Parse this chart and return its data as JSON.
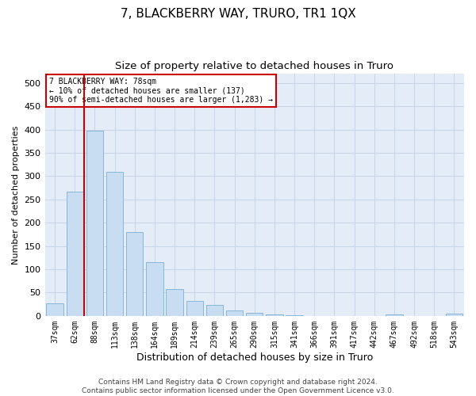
{
  "title": "7, BLACKBERRY WAY, TRURO, TR1 1QX",
  "subtitle": "Size of property relative to detached houses in Truro",
  "xlabel": "Distribution of detached houses by size in Truro",
  "ylabel": "Number of detached properties",
  "categories": [
    "37sqm",
    "62sqm",
    "88sqm",
    "113sqm",
    "138sqm",
    "164sqm",
    "189sqm",
    "214sqm",
    "239sqm",
    "265sqm",
    "290sqm",
    "315sqm",
    "341sqm",
    "366sqm",
    "391sqm",
    "417sqm",
    "442sqm",
    "467sqm",
    "492sqm",
    "518sqm",
    "543sqm"
  ],
  "values": [
    27,
    267,
    397,
    310,
    180,
    115,
    57,
    32,
    23,
    12,
    6,
    3,
    1,
    0,
    0,
    0,
    0,
    3,
    0,
    0,
    4
  ],
  "bar_color": "#c9ddf2",
  "bar_edge_color": "#7aafd4",
  "vline_x": 1.48,
  "vline_color": "#cc0000",
  "annotation_text": "7 BLACKBERRY WAY: 78sqm\n← 10% of detached houses are smaller (137)\n90% of semi-detached houses are larger (1,283) →",
  "annotation_box_color": "#ffffff",
  "annotation_box_edge": "#cc0000",
  "ylim": [
    0,
    520
  ],
  "yticks": [
    0,
    50,
    100,
    150,
    200,
    250,
    300,
    350,
    400,
    450,
    500
  ],
  "grid_color": "#c8d4e8",
  "bg_color": "#e4ecf7",
  "footer": "Contains HM Land Registry data © Crown copyright and database right 2024.\nContains public sector information licensed under the Open Government Licence v3.0.",
  "title_fontsize": 11,
  "subtitle_fontsize": 9.5,
  "xlabel_fontsize": 9,
  "ylabel_fontsize": 8,
  "footer_fontsize": 6.5
}
